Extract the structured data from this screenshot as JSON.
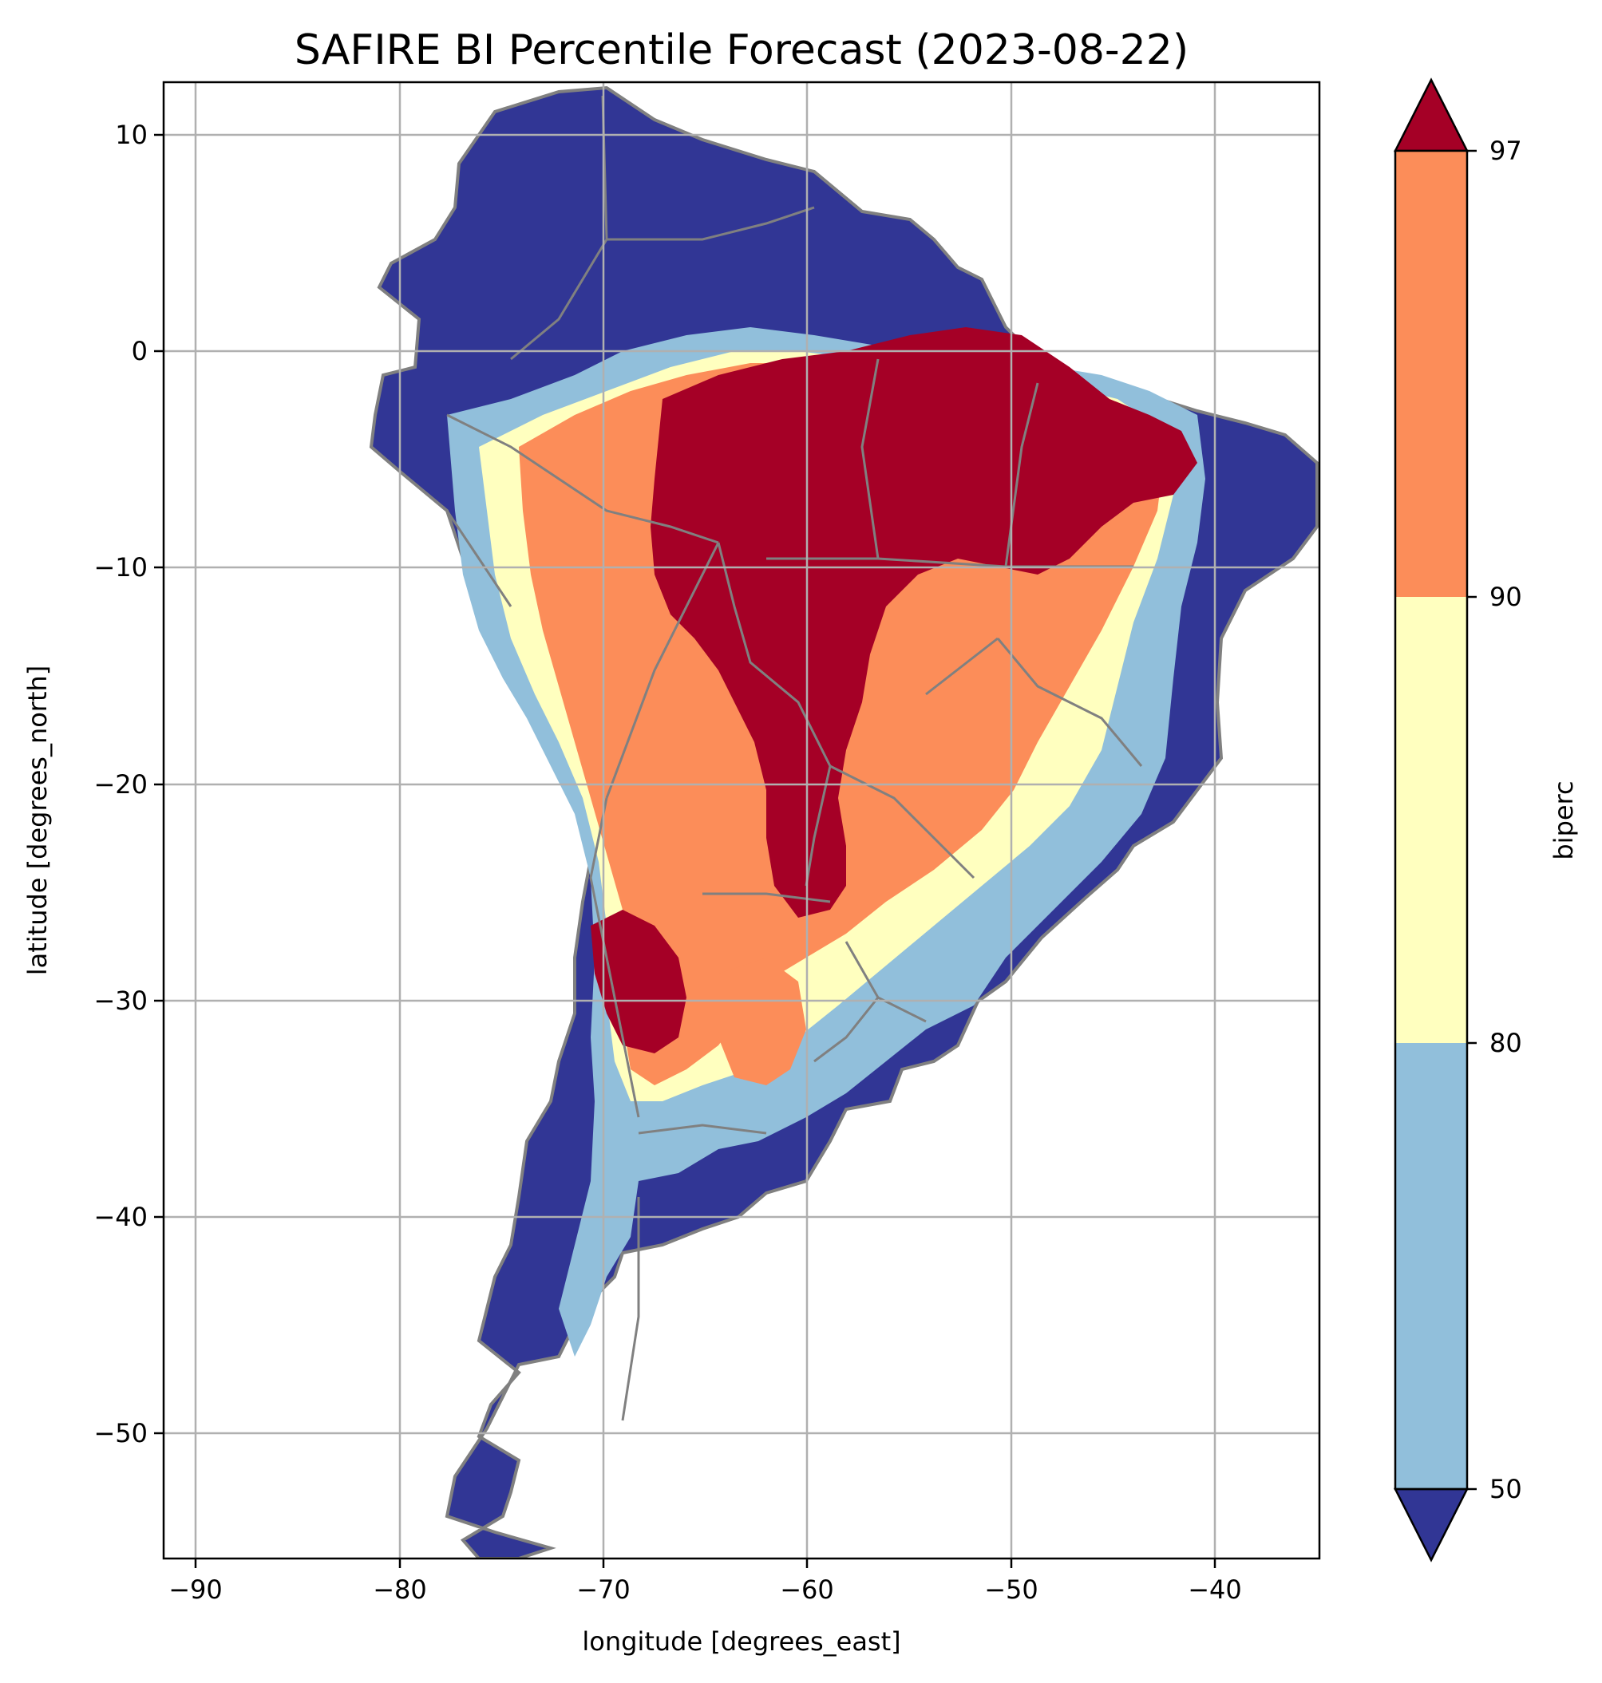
{
  "chart_data": {
    "type": "heatmap",
    "title": "SAFIRE BI Percentile Forecast (2023-08-22)",
    "xlabel": "longitude [degrees_east]",
    "ylabel": "latitude [degrees_north]",
    "xlim": [
      -91.6,
      -35.0
    ],
    "ylim": [
      -55.9,
      12.4
    ],
    "x_ticks": [
      -90,
      -80,
      -70,
      -60,
      -50,
      -40
    ],
    "y_ticks": [
      10,
      0,
      -10,
      -20,
      -30,
      -40,
      -50
    ],
    "x_tick_labels": [
      "−90",
      "−80",
      "−70",
      "−60",
      "−50",
      "−40"
    ],
    "y_tick_labels": [
      "10",
      "0",
      "−10",
      "−20",
      "−30",
      "−40",
      "−50"
    ],
    "grid": true,
    "region": "South America",
    "colorbar": {
      "label": "biperc",
      "ticks": [
        50,
        80,
        90,
        97
      ],
      "tick_labels": [
        "50",
        "80",
        "90",
        "97"
      ],
      "extend": "both",
      "bins": [
        {
          "range": "<50",
          "color": "#313695"
        },
        {
          "range": "50-80",
          "color": "#91bfdb"
        },
        {
          "range": "80-90",
          "color": "#ffffbf"
        },
        {
          "range": "90-97",
          "color": "#fc8d59"
        },
        {
          "range": ">97",
          "color": "#a50026"
        }
      ]
    },
    "colors": {
      "border": "#808080",
      "grid": "#b0b0b0"
    }
  }
}
